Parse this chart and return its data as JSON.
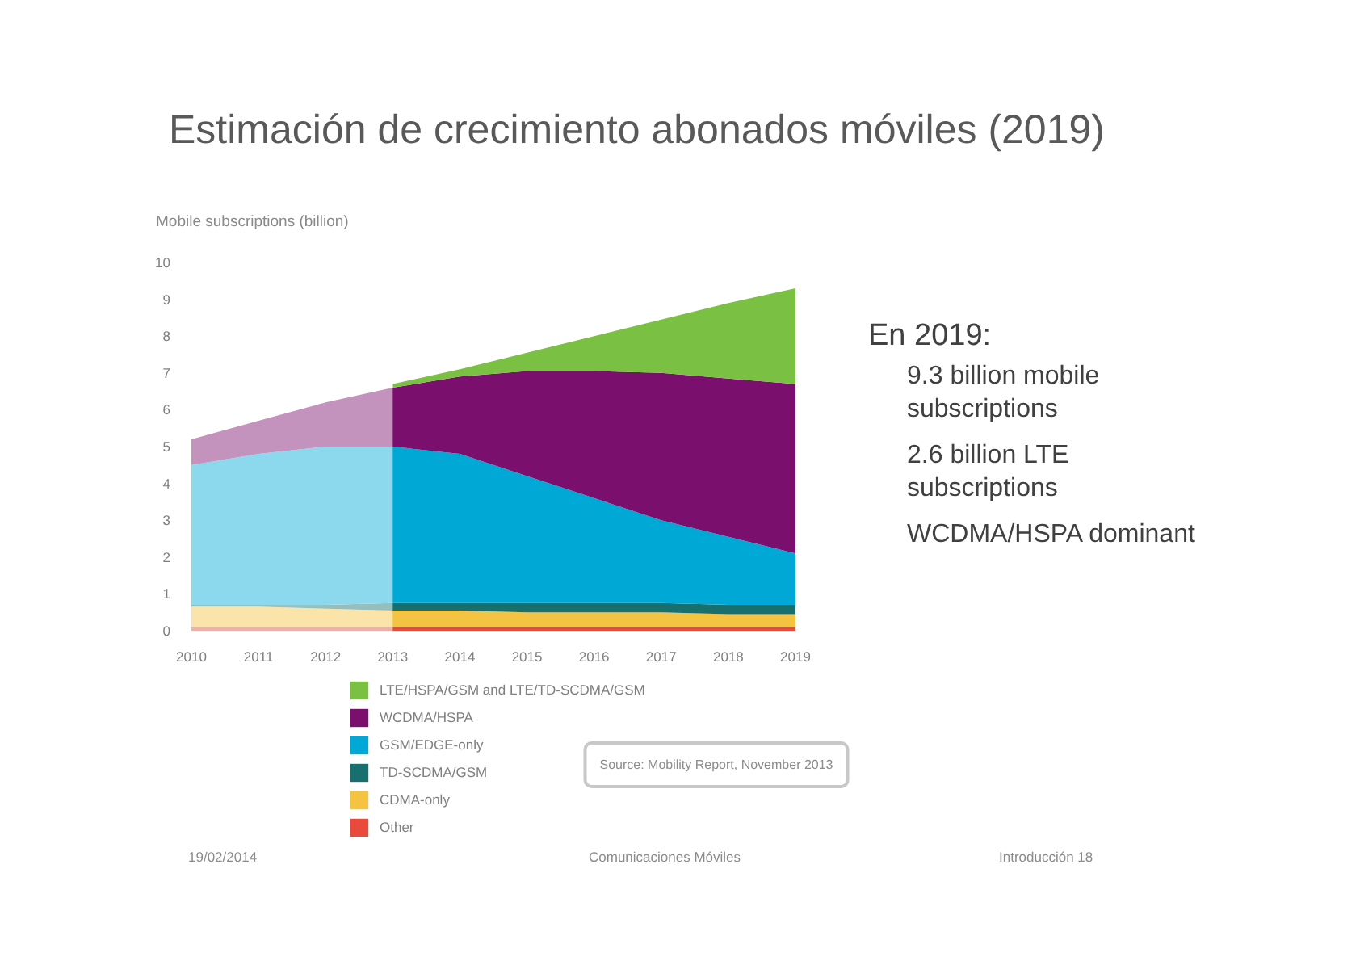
{
  "chart_data": {
    "type": "area",
    "stacked": true,
    "title": "Estimación de crecimiento abonados móviles (2019)",
    "ylabel": "Mobile subscriptions (billion)",
    "x": [
      2010,
      2011,
      2012,
      2013,
      2014,
      2015,
      2016,
      2017,
      2018,
      2019
    ],
    "xlim": [
      2010,
      2019
    ],
    "xticks": [
      2010,
      2011,
      2012,
      2013,
      2014,
      2015,
      2016,
      2017,
      2018,
      2019
    ],
    "ylim": [
      0,
      10
    ],
    "yticks": [
      0,
      1,
      2,
      3,
      4,
      5,
      6,
      7,
      8,
      9,
      10
    ],
    "series": [
      {
        "name": "Other",
        "color": "#e84a3b",
        "values": [
          0.1,
          0.1,
          0.1,
          0.1,
          0.1,
          0.1,
          0.1,
          0.1,
          0.1,
          0.1
        ]
      },
      {
        "name": "CDMA-only",
        "color": "#f5c342",
        "values": [
          0.55,
          0.55,
          0.5,
          0.45,
          0.45,
          0.4,
          0.4,
          0.4,
          0.35,
          0.35
        ]
      },
      {
        "name": "TD-SCDMA/GSM",
        "color": "#17706e",
        "values": [
          0.05,
          0.05,
          0.1,
          0.2,
          0.2,
          0.25,
          0.25,
          0.25,
          0.25,
          0.25
        ]
      },
      {
        "name": "GSM/EDGE-only",
        "color": "#00a8d6",
        "values": [
          3.8,
          4.1,
          4.3,
          4.25,
          4.05,
          3.45,
          2.85,
          2.25,
          1.85,
          1.4
        ]
      },
      {
        "name": "WCDMA/HSPA",
        "color": "#7b0f6e",
        "values": [
          0.7,
          0.9,
          1.2,
          1.6,
          2.1,
          2.85,
          3.45,
          4.0,
          4.3,
          4.6
        ]
      },
      {
        "name": "LTE/HSPA/GSM and LTE/TD-SCDMA/GSM",
        "color": "#7ac143",
        "values": [
          null,
          null,
          null,
          0.1,
          0.2,
          0.5,
          0.95,
          1.45,
          2.05,
          2.6
        ]
      }
    ],
    "bands": [
      {
        "axis": "x",
        "from": 2010,
        "to": 2013,
        "color": "#ffffff"
      }
    ],
    "legend": "bottom",
    "annotations": [
      "En 2019:",
      "9.3 billion mobile subscriptions",
      "2.6 billion LTE subscriptions",
      "WCDMA/HSPA dominant",
      "Source: Mobility Report, November 2013",
      "19/02/2014",
      "Comunicaciones Móviles",
      "Introducción 18"
    ]
  }
}
